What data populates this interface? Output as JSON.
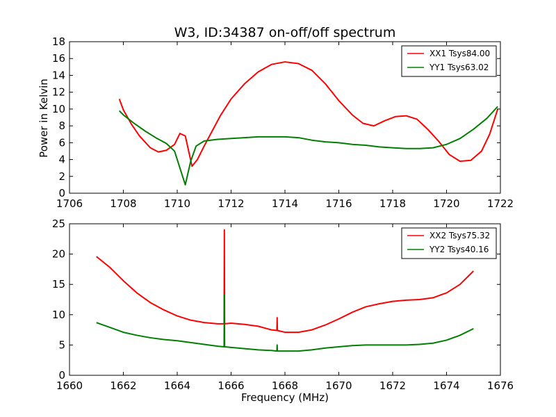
{
  "figure": {
    "title": "W3, ID:34387 on-off/off spectrum",
    "xlabel": "Frequency (MHz)",
    "ylabel": "Power in Kelvin"
  },
  "chart_data": [
    {
      "type": "line",
      "title": "W3, ID:34387 on-off/off spectrum",
      "xlabel": "",
      "ylabel": "Power in Kelvin",
      "xlim": [
        1706,
        1722
      ],
      "ylim": [
        0,
        18
      ],
      "xticks": [
        1706,
        1708,
        1710,
        1712,
        1714,
        1716,
        1718,
        1720,
        1722
      ],
      "yticks": [
        0,
        2,
        4,
        6,
        8,
        10,
        12,
        14,
        16,
        18
      ],
      "legend": "top-right",
      "series": [
        {
          "name": "XX1 Tsys84.00",
          "color": "#ff0000",
          "x": [
            1707.85,
            1708.0,
            1708.3,
            1708.6,
            1709.0,
            1709.3,
            1709.6,
            1709.9,
            1710.1,
            1710.3,
            1710.55,
            1710.75,
            1711.0,
            1711.3,
            1711.6,
            1712.0,
            1712.5,
            1713.0,
            1713.5,
            1714.0,
            1714.5,
            1715.0,
            1715.5,
            1716.0,
            1716.5,
            1716.9,
            1717.3,
            1717.7,
            1718.1,
            1718.5,
            1718.9,
            1719.3,
            1719.7,
            1720.1,
            1720.5,
            1720.9,
            1721.3,
            1721.6,
            1721.9
          ],
          "y": [
            11.2,
            9.9,
            8.2,
            6.8,
            5.4,
            4.9,
            5.1,
            5.8,
            7.1,
            6.8,
            3.2,
            4.0,
            5.6,
            7.4,
            9.2,
            11.2,
            13.0,
            14.4,
            15.3,
            15.6,
            15.4,
            14.6,
            13.0,
            11.0,
            9.3,
            8.3,
            8.0,
            8.6,
            9.1,
            9.2,
            8.8,
            7.6,
            6.2,
            4.6,
            3.8,
            3.9,
            5.0,
            7.0,
            10.0
          ]
        },
        {
          "name": "YY1 Tsys63.02",
          "color": "#008000",
          "x": [
            1707.85,
            1708.0,
            1708.4,
            1708.8,
            1709.2,
            1709.6,
            1709.9,
            1710.1,
            1710.3,
            1710.5,
            1710.7,
            1711.0,
            1711.5,
            1712.0,
            1712.5,
            1713.0,
            1713.5,
            1714.0,
            1714.5,
            1715.0,
            1715.5,
            1716.0,
            1716.5,
            1717.0,
            1717.5,
            1718.0,
            1718.5,
            1719.0,
            1719.5,
            1720.0,
            1720.5,
            1721.0,
            1721.5,
            1721.9
          ],
          "y": [
            9.8,
            9.3,
            8.3,
            7.4,
            6.6,
            5.9,
            5.0,
            3.0,
            1.0,
            3.8,
            5.6,
            6.2,
            6.4,
            6.5,
            6.6,
            6.7,
            6.7,
            6.7,
            6.6,
            6.3,
            6.1,
            6.0,
            5.8,
            5.7,
            5.5,
            5.4,
            5.3,
            5.3,
            5.4,
            5.8,
            6.5,
            7.6,
            8.9,
            10.3
          ]
        }
      ]
    },
    {
      "type": "line",
      "title": "",
      "xlabel": "Frequency (MHz)",
      "ylabel": "",
      "xlim": [
        1660,
        1676
      ],
      "ylim": [
        0,
        25
      ],
      "xticks": [
        1660,
        1662,
        1664,
        1666,
        1668,
        1670,
        1672,
        1674,
        1676
      ],
      "yticks": [
        0,
        5,
        10,
        15,
        20,
        25
      ],
      "legend": "top-right",
      "series": [
        {
          "name": "XX2 Tsys75.32",
          "color": "#ff0000",
          "x": [
            1661.0,
            1661.5,
            1662.0,
            1662.5,
            1663.0,
            1663.5,
            1664.0,
            1664.5,
            1665.0,
            1665.5,
            1665.74,
            1665.75,
            1665.76,
            1666.0,
            1666.5,
            1667.0,
            1667.5,
            1667.7,
            1667.71,
            1667.72,
            1668.0,
            1668.5,
            1669.0,
            1669.5,
            1670.0,
            1670.5,
            1671.0,
            1671.5,
            1672.0,
            1672.5,
            1673.0,
            1673.5,
            1674.0,
            1674.5,
            1675.0
          ],
          "y": [
            19.6,
            17.8,
            15.6,
            13.6,
            12.0,
            10.8,
            9.8,
            9.1,
            8.7,
            8.5,
            8.5,
            24.0,
            8.5,
            8.6,
            8.4,
            8.1,
            7.5,
            7.4,
            9.5,
            7.4,
            7.1,
            7.1,
            7.5,
            8.3,
            9.3,
            10.4,
            11.3,
            11.8,
            12.2,
            12.4,
            12.5,
            12.8,
            13.6,
            15.0,
            17.2
          ]
        },
        {
          "name": "YY2 Tsys40.16",
          "color": "#008000",
          "x": [
            1661.0,
            1661.5,
            1662.0,
            1662.5,
            1663.0,
            1663.5,
            1664.0,
            1664.5,
            1665.0,
            1665.5,
            1665.74,
            1665.75,
            1665.76,
            1666.0,
            1666.5,
            1667.0,
            1667.5,
            1667.7,
            1667.71,
            1667.72,
            1668.0,
            1668.5,
            1669.0,
            1669.5,
            1670.0,
            1670.5,
            1671.0,
            1671.5,
            1672.0,
            1672.5,
            1673.0,
            1673.5,
            1674.0,
            1674.5,
            1675.0
          ],
          "y": [
            8.7,
            7.9,
            7.1,
            6.6,
            6.2,
            5.9,
            5.7,
            5.4,
            5.1,
            4.8,
            4.7,
            13.3,
            4.7,
            4.6,
            4.4,
            4.2,
            4.1,
            4.0,
            5.0,
            4.0,
            4.0,
            4.0,
            4.2,
            4.5,
            4.7,
            4.9,
            5.0,
            5.0,
            5.0,
            5.0,
            5.1,
            5.3,
            5.8,
            6.6,
            7.7
          ]
        }
      ]
    }
  ]
}
